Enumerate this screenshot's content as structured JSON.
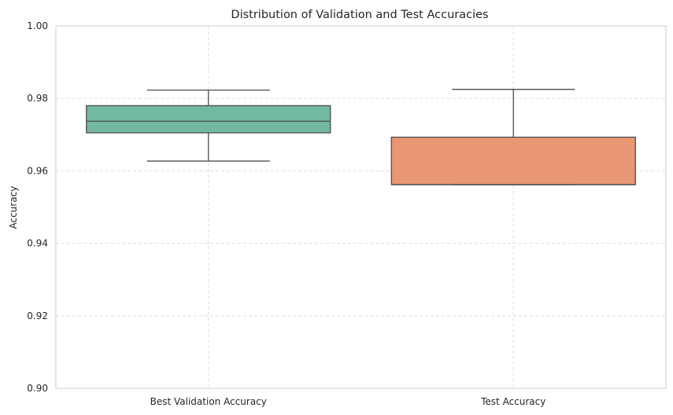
{
  "chart_data": {
    "type": "box",
    "title": "Distribution of Validation and Test Accuracies",
    "xlabel": "",
    "ylabel": "Accuracy",
    "ylim": [
      0.9,
      1.0
    ],
    "y_ticks": [
      0.9,
      0.92,
      0.94,
      0.96,
      0.98,
      1.0
    ],
    "y_tick_labels": [
      "0.90",
      "0.92",
      "0.94",
      "0.96",
      "0.98",
      "1.00"
    ],
    "categories": [
      "Best Validation Accuracy",
      "Test Accuracy"
    ],
    "boxes": [
      {
        "category": "Best Validation Accuracy",
        "whisker_low": 0.9627,
        "q1": 0.9705,
        "median": 0.9737,
        "q3": 0.978,
        "whisker_high": 0.9823,
        "color": "#72b8a2"
      },
      {
        "category": "Test Accuracy",
        "whisker_low": 0.9562,
        "q1": 0.9562,
        "median": 0.9562,
        "q3": 0.9693,
        "whisker_high": 0.9825,
        "color": "#e99674"
      }
    ],
    "grid": true,
    "legend": "none"
  },
  "colors": {
    "grid": "#dddddd",
    "spine": "#cccccc",
    "box_edge": "#4d4d4d"
  }
}
